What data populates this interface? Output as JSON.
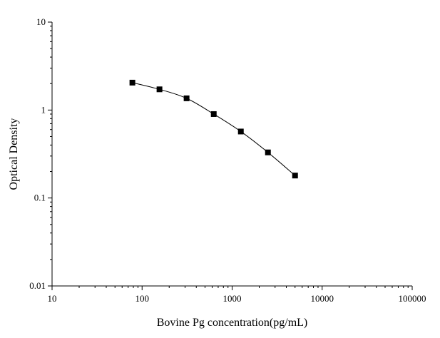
{
  "chart_data": {
    "type": "scatter",
    "xscale": "log",
    "yscale": "log",
    "xlim": [
      10,
      100000
    ],
    "ylim": [
      0.01,
      10
    ],
    "xlabel": "Bovine Pg concentration(pg/mL)",
    "ylabel": "Optical Density",
    "x_ticks": [
      "10",
      "100",
      "1000",
      "10000",
      "100000"
    ],
    "y_ticks": [
      "0.01",
      "0.1",
      "1",
      "10"
    ],
    "grid": false,
    "marker": "square",
    "fit_line": true,
    "series": [
      {
        "x": [
          78,
          156,
          312,
          625,
          1250,
          2500,
          5000
        ],
        "y": [
          2.05,
          1.72,
          1.36,
          0.9,
          0.57,
          0.33,
          0.18
        ]
      }
    ]
  }
}
